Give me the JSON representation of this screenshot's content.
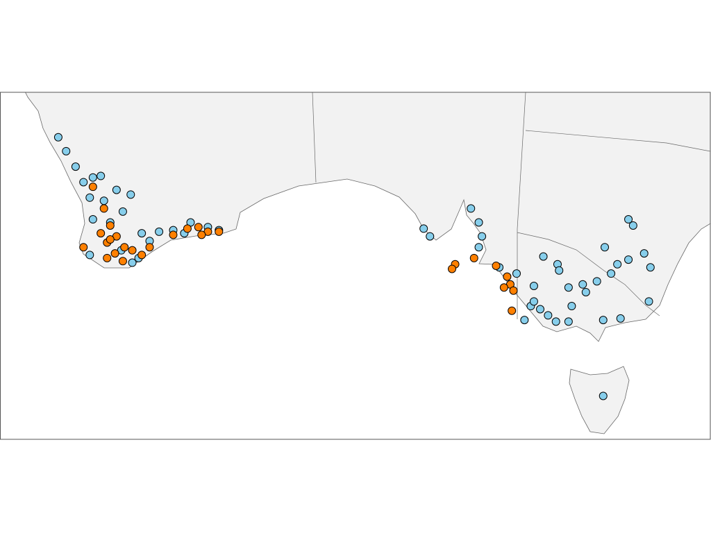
{
  "chart_data": {
    "type": "scatter",
    "xlim": [
      108.5,
      153.6
    ],
    "ylim": [
      -45.5,
      -23.1
    ],
    "series": [
      {
        "color": "#87ceeb",
        "x": [
          112.2,
          112.7,
          113.3,
          113.8,
          114.4,
          114.9,
          115.9,
          116.8,
          114.2,
          115.1,
          116.3,
          114.4,
          115.5,
          117.5,
          118.6,
          119.5,
          120.6,
          121.7,
          122.4,
          114.2,
          116.9,
          118.0,
          135.4,
          135.8,
          138.4,
          138.9,
          139.1,
          138.9,
          140.2,
          141.3,
          142.4,
          142.2,
          143.3,
          143.9,
          144.6,
          145.5,
          146.4,
          147.3,
          147.7,
          148.4,
          148.4,
          148.7,
          146.9,
          149.4,
          149.8,
          149.7,
          147.9,
          146.8,
          144.6,
          143.8,
          142.8,
          144.8,
          145.7,
          144.0,
          143.0,
          146.8,
          142.4,
          141.8,
          116.2,
          117.3,
          120.2
        ],
        "values": [
          -26.0,
          -26.9,
          -27.9,
          -28.9,
          -28.6,
          -28.5,
          -29.4,
          -29.7,
          -29.9,
          -30.1,
          -30.8,
          -31.3,
          -31.5,
          -32.2,
          -32.1,
          -32.0,
          -31.5,
          -31.8,
          -32.0,
          -33.6,
          -34.1,
          -32.7,
          -31.9,
          -32.4,
          -30.6,
          -31.5,
          -32.4,
          -33.1,
          -34.4,
          -34.8,
          -35.6,
          -36.9,
          -37.5,
          -34.2,
          -35.7,
          -35.5,
          -35.3,
          -34.8,
          -34.2,
          -33.9,
          -31.3,
          -31.7,
          -33.1,
          -33.5,
          -34.4,
          -36.6,
          -37.7,
          -37.8,
          -37.9,
          -37.9,
          -37.1,
          -36.9,
          -36.0,
          -34.6,
          -33.7,
          -42.7,
          -36.6,
          -37.8,
          -33.3,
          -33.8,
          -32.2
        ]
      },
      {
        "color": "#ff8000",
        "x": [
          113.8,
          114.4,
          115.1,
          115.5,
          115.9,
          115.3,
          116.4,
          115.8,
          116.9,
          117.5,
          116.3,
          118.0,
          115.3,
          119.5,
          120.4,
          121.1,
          121.7,
          122.4,
          121.3,
          137.4,
          137.2,
          138.6,
          140.0,
          140.7,
          140.9,
          140.5,
          141.1,
          141.0,
          114.9,
          115.5
        ],
        "values": [
          -33.1,
          -29.2,
          -30.6,
          -31.7,
          -32.4,
          -32.8,
          -33.1,
          -33.5,
          -33.3,
          -33.6,
          -34.0,
          -33.1,
          -33.8,
          -32.3,
          -31.9,
          -31.8,
          -32.1,
          -32.1,
          -32.3,
          -34.2,
          -34.5,
          -33.8,
          -34.3,
          -35.0,
          -35.5,
          -35.7,
          -35.9,
          -37.2,
          -32.2,
          -32.6
        ]
      }
    ]
  }
}
